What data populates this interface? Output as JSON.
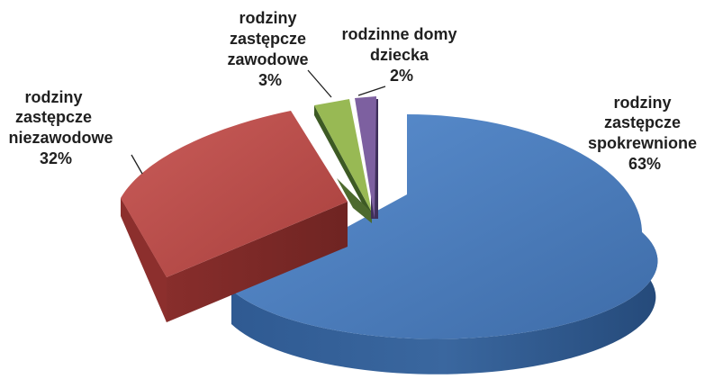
{
  "chart_data": {
    "type": "pie",
    "title": "",
    "slices": [
      {
        "label_lines": [
          "rodziny",
          "zastępcze",
          "spokrewnione"
        ],
        "value_label": "63%",
        "value": 63,
        "color": "#4a7ebb"
      },
      {
        "label_lines": [
          "rodziny",
          "zastępcze",
          "niezawodowe"
        ],
        "value_label": "32%",
        "value": 32,
        "color": "#be4b48"
      },
      {
        "label_lines": [
          "rodziny",
          "zastępcze",
          "zawodowe"
        ],
        "value_label": "3%",
        "value": 3,
        "color": "#98b954"
      },
      {
        "label_lines": [
          "rodzinne domy",
          "dziecka"
        ],
        "value_label": "2%",
        "value": 2,
        "color": "#7d60a0"
      }
    ],
    "style": "3d-exploded"
  }
}
